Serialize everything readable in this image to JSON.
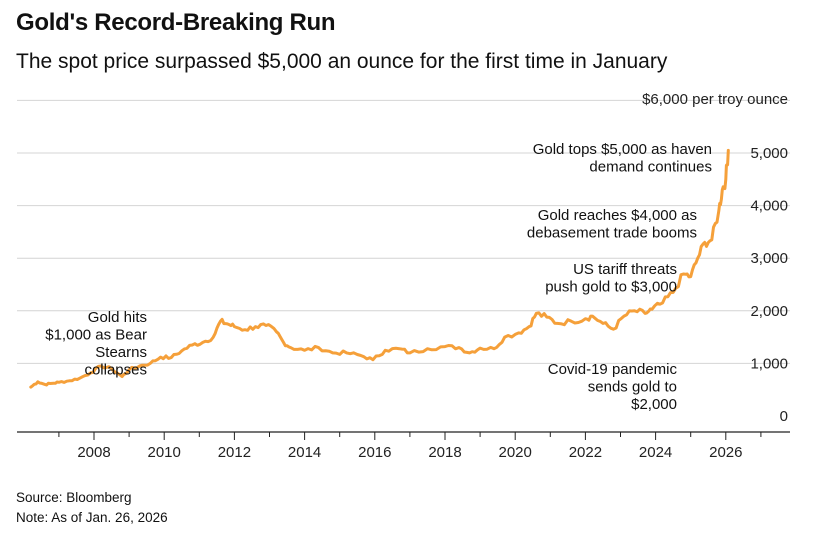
{
  "header": {
    "title": "Gold's Record-Breaking Run",
    "subtitle": "The spot price surpassed $5,000 an ounce for the first time in January"
  },
  "footer": {
    "source": "Source: Bloomberg",
    "note": "Note: As of Jan. 26, 2026"
  },
  "colors": {
    "line": "#F5A03A",
    "grid": "#d4d4d4",
    "axis": "#222222"
  },
  "chart_data": {
    "type": "line",
    "title": "Gold's Record-Breaking Run",
    "subtitle": "The spot price surpassed $5,000 an ounce for the first time in January",
    "unit_label": "$6,000 per troy ounce",
    "xlabel": "",
    "ylabel": "",
    "x_ticks": [
      "2008",
      "2010",
      "2012",
      "2014",
      "2016",
      "2018",
      "2020",
      "2022",
      "2024",
      "2026"
    ],
    "y_ticks": [
      "0",
      "1,000",
      "2,000",
      "3,000",
      "4,000",
      "5,000"
    ],
    "ylim": [
      0,
      6000
    ],
    "xlim": [
      2006.0,
      2028.0
    ],
    "grid": true,
    "y_axis_side": "right",
    "series": [
      {
        "name": "",
        "x": [
          2006.2,
          2006.4,
          2006.6,
          2006.8,
          2007.0,
          2007.3,
          2007.6,
          2007.9,
          2008.2,
          2008.5,
          2008.8,
          2009.0,
          2009.3,
          2009.6,
          2009.9,
          2010.2,
          2010.5,
          2010.8,
          2011.1,
          2011.4,
          2011.6,
          2011.8,
          2012.0,
          2012.3,
          2012.6,
          2012.9,
          2013.2,
          2013.4,
          2013.6,
          2014.0,
          2014.4,
          2014.8,
          2015.2,
          2015.6,
          2015.95,
          2016.3,
          2016.7,
          2017.0,
          2017.5,
          2018.0,
          2018.4,
          2018.7,
          2019.0,
          2019.4,
          2019.7,
          2020.1,
          2020.4,
          2020.6,
          2020.9,
          2021.2,
          2021.6,
          2022.0,
          2022.2,
          2022.5,
          2022.8,
          2023.1,
          2023.4,
          2023.7,
          2023.9,
          2024.2,
          2024.5,
          2024.8,
          2025.0,
          2025.2,
          2025.4,
          2025.6,
          2025.8,
          2025.9,
          2026.0,
          2026.07
        ],
        "values": [
          550,
          650,
          600,
          620,
          640,
          670,
          720,
          820,
          950,
          900,
          750,
          880,
          950,
          1000,
          1120,
          1110,
          1240,
          1350,
          1400,
          1500,
          1800,
          1750,
          1700,
          1640,
          1700,
          1720,
          1600,
          1400,
          1300,
          1250,
          1300,
          1200,
          1200,
          1150,
          1070,
          1250,
          1280,
          1200,
          1280,
          1320,
          1300,
          1200,
          1290,
          1280,
          1500,
          1580,
          1700,
          1950,
          1880,
          1760,
          1800,
          1850,
          1900,
          1760,
          1650,
          1900,
          2000,
          1950,
          2030,
          2150,
          2350,
          2700,
          2650,
          3000,
          3300,
          3350,
          3900,
          4300,
          4500,
          5050
        ]
      }
    ],
    "annotations": [
      {
        "lines": [
          "Gold hits",
          "$1,000 as Bear",
          "Stearns",
          "collapses"
        ]
      },
      {
        "lines": [
          "Covid-19 pandemic",
          "sends gold to",
          "$2,000"
        ]
      },
      {
        "lines": [
          "US tariff threats",
          "push gold to $3,000"
        ]
      },
      {
        "lines": [
          "Gold reaches $4,000 as",
          "debasement trade booms"
        ]
      },
      {
        "lines": [
          "Gold tops $5,000 as haven",
          "demand continues"
        ]
      }
    ]
  }
}
